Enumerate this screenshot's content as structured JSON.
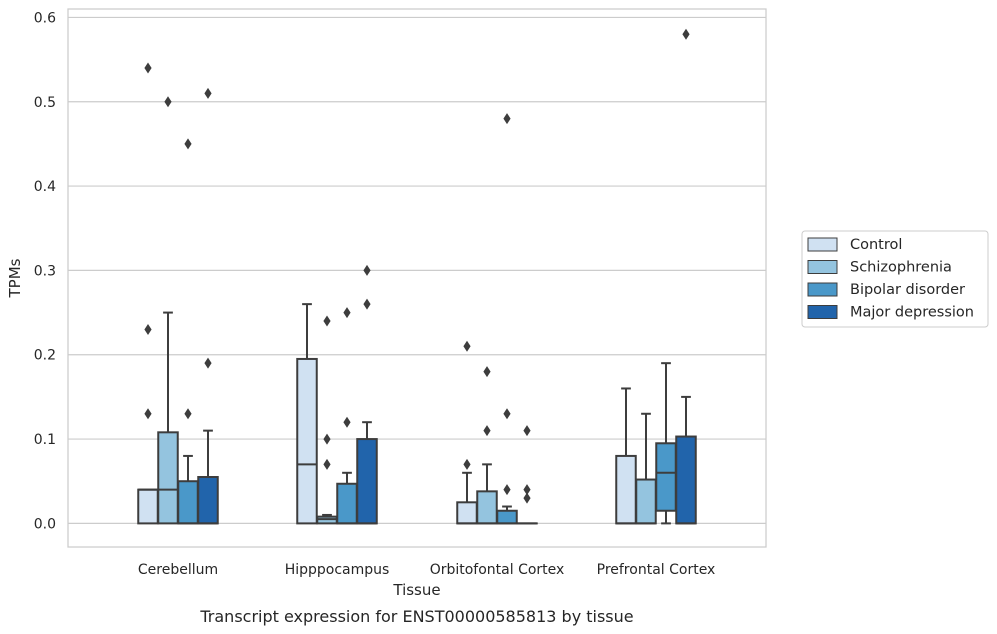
{
  "chart_data": {
    "type": "box",
    "caption": "Transcript expression for ENST00000585813 by tissue",
    "xlabel": "Tissue",
    "ylabel": "TPMs",
    "ylim": [
      -0.028,
      0.61
    ],
    "yticks": [
      0.0,
      0.1,
      0.2,
      0.3,
      0.4,
      0.5,
      0.6
    ],
    "ytick_labels": [
      "0.0",
      "0.1",
      "0.2",
      "0.3",
      "0.4",
      "0.5",
      "0.6"
    ],
    "grid": "horizontal",
    "legend_position": "right",
    "categories": [
      "Cerebellum",
      "Hipppocampus",
      "Orbitofontal Cortex",
      "Prefrontal Cortex"
    ],
    "series": [
      {
        "name": "Control",
        "color": "#d0e1f2",
        "boxes": [
          {
            "q1": 0.0,
            "median": 0.04,
            "q3": 0.04,
            "whisker_low": 0.0,
            "whisker_high": 0.04,
            "outliers": [
              0.13,
              0.23,
              0.54
            ]
          },
          {
            "q1": 0.0,
            "median": 0.07,
            "q3": 0.195,
            "whisker_low": 0.0,
            "whisker_high": 0.26,
            "outliers": []
          },
          {
            "q1": 0.0,
            "median": 0.0,
            "q3": 0.025,
            "whisker_low": 0.0,
            "whisker_high": 0.06,
            "outliers": [
              0.07,
              0.21
            ]
          },
          {
            "q1": 0.0,
            "median": 0.0,
            "q3": 0.08,
            "whisker_low": 0.0,
            "whisker_high": 0.16,
            "outliers": []
          }
        ]
      },
      {
        "name": "Schizophrenia",
        "color": "#94c4df",
        "boxes": [
          {
            "q1": 0.0,
            "median": 0.04,
            "q3": 0.108,
            "whisker_low": 0.0,
            "whisker_high": 0.25,
            "outliers": [
              0.5
            ]
          },
          {
            "q1": 0.0,
            "median": 0.005,
            "q3": 0.008,
            "whisker_low": 0.0,
            "whisker_high": 0.01,
            "outliers": [
              0.07,
              0.1,
              0.24
            ]
          },
          {
            "q1": 0.0,
            "median": 0.0,
            "q3": 0.038,
            "whisker_low": 0.0,
            "whisker_high": 0.07,
            "outliers": [
              0.11,
              0.18
            ]
          },
          {
            "q1": 0.0,
            "median": 0.0,
            "q3": 0.052,
            "whisker_low": 0.0,
            "whisker_high": 0.13,
            "outliers": []
          }
        ]
      },
      {
        "name": "Bipolar disorder",
        "color": "#4a98c9",
        "boxes": [
          {
            "q1": 0.0,
            "median": 0.0,
            "q3": 0.05,
            "whisker_low": 0.0,
            "whisker_high": 0.08,
            "outliers": [
              0.13,
              0.45
            ]
          },
          {
            "q1": 0.0,
            "median": 0.0,
            "q3": 0.047,
            "whisker_low": 0.0,
            "whisker_high": 0.06,
            "outliers": [
              0.12,
              0.25
            ]
          },
          {
            "q1": 0.0,
            "median": 0.0,
            "q3": 0.015,
            "whisker_low": 0.0,
            "whisker_high": 0.02,
            "outliers": [
              0.04,
              0.13,
              0.48
            ]
          },
          {
            "q1": 0.015,
            "median": 0.06,
            "q3": 0.095,
            "whisker_low": 0.0,
            "whisker_high": 0.19,
            "outliers": []
          }
        ]
      },
      {
        "name": "Major depression",
        "color": "#2164ab",
        "boxes": [
          {
            "q1": 0.0,
            "median": 0.0,
            "q3": 0.055,
            "whisker_low": 0.0,
            "whisker_high": 0.11,
            "outliers": [
              0.19,
              0.51
            ]
          },
          {
            "q1": 0.0,
            "median": 0.0,
            "q3": 0.1,
            "whisker_low": 0.0,
            "whisker_high": 0.12,
            "outliers": [
              0.26,
              0.3
            ]
          },
          {
            "q1": 0.0,
            "median": 0.0,
            "q3": 0.0,
            "whisker_low": 0.0,
            "whisker_high": 0.0,
            "outliers": [
              0.03,
              0.04,
              0.11
            ]
          },
          {
            "q1": 0.0,
            "median": 0.0,
            "q3": 0.103,
            "whisker_low": 0.0,
            "whisker_high": 0.15,
            "outliers": [
              0.58
            ]
          }
        ]
      }
    ]
  }
}
